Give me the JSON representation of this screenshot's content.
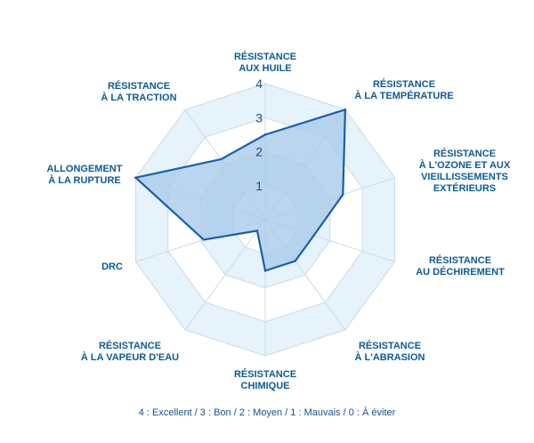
{
  "chart_data": {
    "type": "radar",
    "scale_max": 4,
    "ticks": [
      "1",
      "2",
      "3",
      "4"
    ],
    "axes": [
      {
        "lines": [
          "RÉSISTANCE",
          "AUX HUILE"
        ],
        "value": 2.5
      },
      {
        "lines": [
          "RÉSISTANCE",
          "À LA TEMPÉRATURE"
        ],
        "value": 4
      },
      {
        "lines": [
          "RÉSISTANCE",
          "À L'OZONE ET AUX",
          "VIEILLISSEMENTS",
          "EXTÉRIEURS"
        ],
        "value": 2.4
      },
      {
        "lines": [
          "RÉSISTANCE",
          "AU DÉCHIREMENT"
        ],
        "value": 1.5
      },
      {
        "lines": [
          "RÉSISTANCE",
          "À L'ABRASION"
        ],
        "value": 1.5
      },
      {
        "lines": [
          "RÉSISTANCE",
          "CHIMIQUE"
        ],
        "value": 1.5
      },
      {
        "lines": [
          "RÉSISTANCE",
          "À LA VAPEUR D'EAU"
        ],
        "value": 0.4
      },
      {
        "lines": [
          "DRC"
        ],
        "value": 1.9
      },
      {
        "lines": [
          "ALLONGEMENT",
          "À LA RUPTURE"
        ],
        "value": 4
      },
      {
        "lines": [
          "RÉSISTANCE",
          "À LA TRACTION"
        ],
        "value": 2.2
      }
    ],
    "note": "4 : Excellent / 3 : Bon / 2 :  Moyen / 1 : Mauvais / 0 : À éviter"
  },
  "colors": {
    "fill_area": "#aacbea",
    "series_stroke": "#1a5fa8",
    "label_text": "#0d5a92",
    "background_band": "#e7f3fb",
    "grid_line": "#c9dbe6"
  }
}
